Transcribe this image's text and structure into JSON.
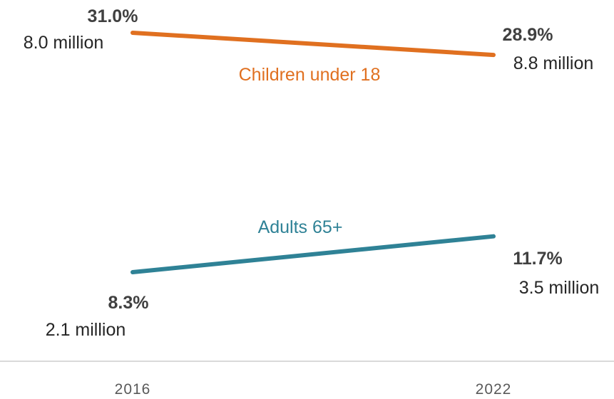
{
  "chart_data": {
    "type": "line",
    "categories": [
      "2016",
      "2022"
    ],
    "series": [
      {
        "name": "Children under 18",
        "values": [
          31.0,
          28.9
        ],
        "value_labels": [
          "31.0%",
          "28.9%"
        ],
        "count_labels": [
          "8.0 million",
          "8.8 million"
        ],
        "color": "#e07020"
      },
      {
        "name": "Adults 65+",
        "values": [
          8.3,
          11.7
        ],
        "value_labels": [
          "8.3%",
          "11.7%"
        ],
        "count_labels": [
          "2.1 million",
          "3.5 million"
        ],
        "color": "#2f8296"
      }
    ],
    "title": "",
    "xlabel": "",
    "ylabel": "",
    "grid": false,
    "legend": "inline labels"
  }
}
